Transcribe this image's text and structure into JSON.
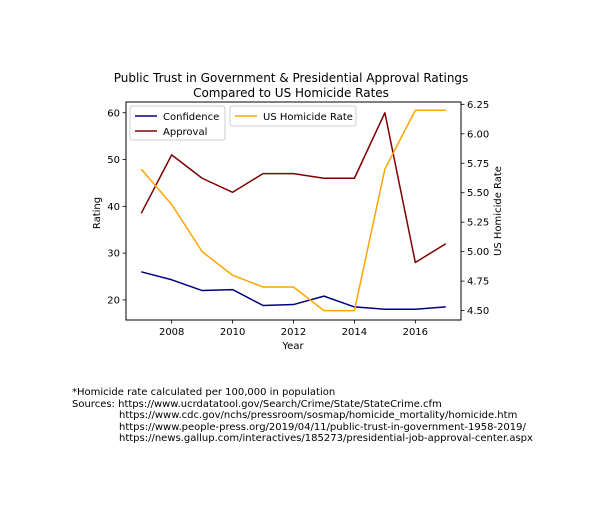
{
  "chart_data": {
    "type": "line",
    "title": "Public Trust in Government & Presidential Approval Ratings",
    "subtitle": "Compared to US Homicide Rates",
    "xlabel": "Year",
    "ylabel": "Rating",
    "y2label": "US Homicide Rate",
    "xlim": [
      2006.5,
      2017.5
    ],
    "ylim": [
      15.7,
      62.3
    ],
    "y2lim": [
      4.42,
      6.27
    ],
    "x_ticks": [
      2008,
      2010,
      2012,
      2014,
      2016
    ],
    "y_ticks": [
      20,
      30,
      40,
      50,
      60
    ],
    "y2_ticks": [
      4.5,
      4.75,
      5.0,
      5.25,
      5.5,
      5.75,
      6.0,
      6.25
    ],
    "y2_tick_labels": [
      "4.50",
      "4.75",
      "5.00",
      "5.25",
      "5.50",
      "5.75",
      "6.00",
      "6.25"
    ],
    "x": [
      2007,
      2008,
      2009,
      2010,
      2011,
      2012,
      2013,
      2014,
      2015,
      2016,
      2017
    ],
    "series": [
      {
        "name": "Confidence",
        "axis": "left",
        "color": "#000080",
        "values": [
          26,
          24.3,
          22,
          22.2,
          18.8,
          19,
          20.8,
          18.5,
          18,
          18,
          18.5
        ]
      },
      {
        "name": "Approval",
        "axis": "left",
        "color": "#800000",
        "values": [
          38.5,
          51,
          46,
          43,
          47,
          47,
          46,
          46,
          60,
          28,
          32
        ]
      },
      {
        "name": "US Homicide Rate",
        "axis": "right",
        "color": "#ffa500",
        "values": [
          5.7,
          5.4,
          5.0,
          4.8,
          4.7,
          4.7,
          4.5,
          4.5,
          5.7,
          6.2,
          6.2
        ]
      }
    ],
    "legend_left": "upper-left",
    "legend_right": "upper-center",
    "grid": false
  },
  "notes": {
    "line1": "*Homicide rate calculated per 100,000 in population",
    "line2": "Sources: https://www.ucrdatatool.gov/Search/Crime/State/StateCrime.cfm",
    "line3": "https://www.cdc.gov/nchs/pressroom/sosmap/homicide_mortality/homicide.htm",
    "line4": "https://www.people-press.org/2019/04/11/public-trust-in-government-1958-2019/",
    "line5": "https://news.gallup.com/interactives/185273/presidential-job-approval-center.aspx"
  }
}
